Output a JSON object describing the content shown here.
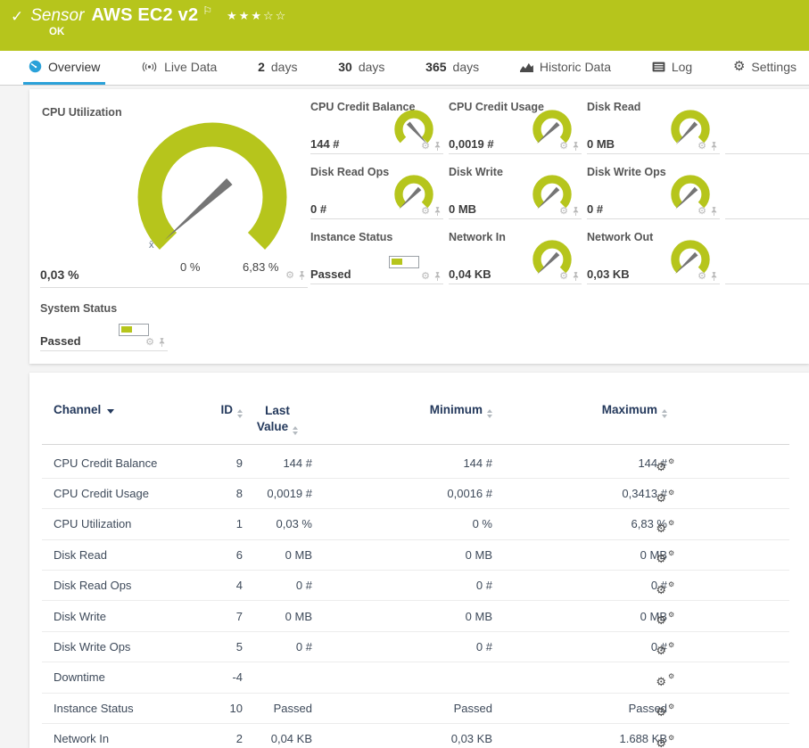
{
  "header": {
    "check_icon": "✓",
    "kind": "Sensor",
    "title": "AWS EC2 v2",
    "flag_icon": "⚐",
    "stars": "★★★☆☆",
    "status": "OK"
  },
  "tabs": [
    {
      "label": "Overview"
    },
    {
      "label": "Live Data"
    },
    {
      "num": "2",
      "label": "days"
    },
    {
      "num": "30",
      "label": "days"
    },
    {
      "num": "365",
      "label": "days"
    },
    {
      "label": "Historic Data"
    },
    {
      "label": "Log"
    },
    {
      "label": "Settings"
    }
  ],
  "gauges": {
    "main": {
      "title": "CPU Utilization",
      "value": "0,03 %",
      "min_label": "0 %",
      "max_label": "6,83 %",
      "mean_marker": "x̄"
    },
    "small": [
      {
        "title": "CPU Credit Balance",
        "value": "144 #",
        "needle_deg": 48
      },
      {
        "title": "CPU Credit Usage",
        "value": "0,0019 #",
        "needle_deg": 137
      },
      {
        "title": "Disk Read",
        "value": "0 MB",
        "needle_deg": 133
      },
      {
        "title": "Disk Read Ops",
        "value": "0 #",
        "needle_deg": 135
      },
      {
        "title": "Disk Write",
        "value": "0 MB",
        "needle_deg": 135
      },
      {
        "title": "Disk Write Ops",
        "value": "0 #",
        "needle_deg": 135
      },
      {
        "title": "Instance Status",
        "value": "Passed",
        "type": "bar"
      },
      {
        "title": "Network In",
        "value": "0,04 KB",
        "needle_deg": 135
      },
      {
        "title": "Network Out",
        "value": "0,03 KB",
        "needle_deg": 137
      }
    ],
    "system": {
      "title": "System Status",
      "value": "Passed"
    }
  },
  "table": {
    "columns": {
      "channel": "Channel",
      "id": "ID",
      "last1": "Last",
      "last2": "Value",
      "min": "Minimum",
      "max": "Maximum"
    },
    "rows": [
      {
        "channel": "CPU Credit Balance",
        "id": "9",
        "last": "144 #",
        "min": "144 #",
        "max": "144 #"
      },
      {
        "channel": "CPU Credit Usage",
        "id": "8",
        "last": "0,0019 #",
        "min": "0,0016 #",
        "max": "0,3413 #"
      },
      {
        "channel": "CPU Utilization",
        "id": "1",
        "last": "0,03 %",
        "min": "0 %",
        "max": "6,83 %"
      },
      {
        "channel": "Disk Read",
        "id": "6",
        "last": "0 MB",
        "min": "0 MB",
        "max": "0 MB"
      },
      {
        "channel": "Disk Read Ops",
        "id": "4",
        "last": "0 #",
        "min": "0 #",
        "max": "0 #"
      },
      {
        "channel": "Disk Write",
        "id": "7",
        "last": "0 MB",
        "min": "0 MB",
        "max": "0 MB"
      },
      {
        "channel": "Disk Write Ops",
        "id": "5",
        "last": "0 #",
        "min": "0 #",
        "max": "0 #"
      },
      {
        "channel": "Downtime",
        "id": "-4",
        "last": "",
        "min": "",
        "max": ""
      },
      {
        "channel": "Instance Status",
        "id": "10",
        "last": "Passed",
        "min": "Passed",
        "max": "Passed"
      },
      {
        "channel": "Network In",
        "id": "2",
        "last": "0,04 KB",
        "min": "0,03 KB",
        "max": "1.688 KB"
      }
    ]
  },
  "colors": {
    "accent_green": "#b6c51c",
    "tab_blue": "#2aa1d9",
    "header_text": "#24395c"
  }
}
